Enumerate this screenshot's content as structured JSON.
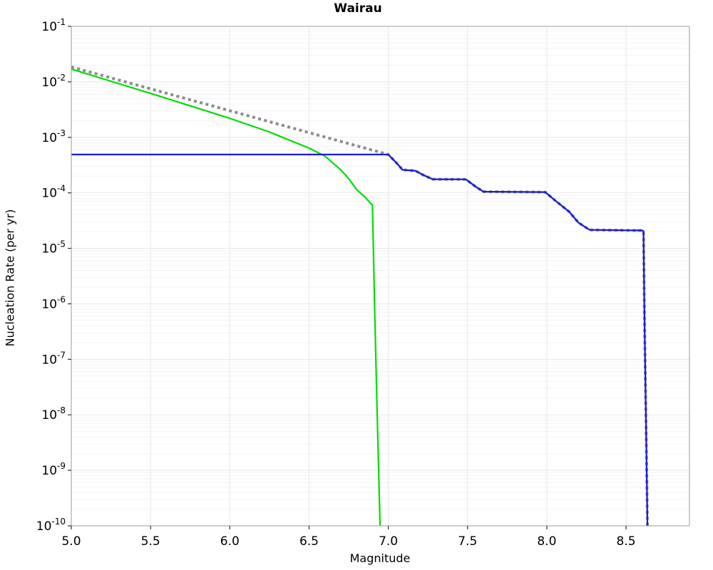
{
  "figure": {
    "title": "Wairau",
    "xlabel": "Magnitude",
    "ylabel": "Nucleation Rate (per yr)"
  },
  "chart_data": {
    "type": "line",
    "title": "Wairau",
    "xlabel": "Magnitude",
    "ylabel": "Nucleation Rate (per yr)",
    "x_range": [
      5.0,
      8.9
    ],
    "y_scale": "log",
    "y_range": [
      1e-10,
      0.1
    ],
    "x_ticks": [
      5.0,
      5.5,
      6.0,
      6.5,
      7.0,
      7.5,
      8.0,
      8.5
    ],
    "x_tick_labels": [
      "5.0",
      "5.5",
      "6.0",
      "6.5",
      "7.0",
      "7.5",
      "8.0",
      "8.5"
    ],
    "y_tick_exponents": [
      -1,
      -2,
      -3,
      -4,
      -5,
      -6,
      -7,
      -8,
      -9,
      -10
    ],
    "grid": true,
    "legend_position": "none",
    "colors": {
      "background": "#ffffff",
      "spine": "#9b9b9b",
      "grid_major": "#e7e7e7",
      "grid_minor": "#f3f3f3",
      "tick": "#333333"
    },
    "series": [
      {
        "name": "gutenberg-richter-dotted",
        "color": "#8c8c8c",
        "style": "dotted",
        "line_width": 4,
        "points": [
          [
            5.0,
            0.0186
          ],
          [
            7.0,
            0.00049
          ],
          [
            7.05,
            0.00035
          ],
          [
            7.09,
            0.00026
          ],
          [
            7.17,
            0.00025
          ],
          [
            7.22,
            0.00021
          ],
          [
            7.28,
            0.000176
          ],
          [
            7.49,
            0.000175
          ],
          [
            7.55,
            0.00013
          ],
          [
            7.6,
            0.000105
          ],
          [
            7.99,
            0.000103
          ],
          [
            8.06,
            7e-05
          ],
          [
            8.14,
            4.6e-05
          ],
          [
            8.2,
            2.9e-05
          ],
          [
            8.27,
            2.15e-05
          ],
          [
            8.6,
            2.1e-05
          ],
          [
            8.61,
            2.05e-05
          ],
          [
            8.615,
            1e-06
          ],
          [
            8.625,
            1e-08
          ],
          [
            8.635,
            1e-10
          ]
        ]
      },
      {
        "name": "tapered-rate-green",
        "color": "#00dd00",
        "style": "solid",
        "line_width": 2.2,
        "points": [
          [
            5.0,
            0.017
          ],
          [
            5.5,
            0.0062
          ],
          [
            6.0,
            0.0022
          ],
          [
            6.25,
            0.00125
          ],
          [
            6.5,
            0.00064
          ],
          [
            6.6,
            0.00046
          ],
          [
            6.7,
            0.00026
          ],
          [
            6.75,
            0.00018
          ],
          [
            6.8,
            0.000115
          ],
          [
            6.85,
            8.5e-05
          ],
          [
            6.9,
            6e-05
          ],
          [
            6.913,
            1e-06
          ],
          [
            6.93,
            1e-08
          ],
          [
            6.948,
            1e-10
          ]
        ]
      },
      {
        "name": "nucleation-rate-blue",
        "color": "#1a1ae0",
        "style": "solid",
        "line_width": 2.3,
        "points": [
          [
            5.0,
            0.00049
          ],
          [
            7.0,
            0.00049
          ],
          [
            7.05,
            0.00035
          ],
          [
            7.09,
            0.00026
          ],
          [
            7.17,
            0.00025
          ],
          [
            7.22,
            0.00021
          ],
          [
            7.28,
            0.000176
          ],
          [
            7.49,
            0.000175
          ],
          [
            7.55,
            0.00013
          ],
          [
            7.6,
            0.000105
          ],
          [
            7.99,
            0.000103
          ],
          [
            8.06,
            7e-05
          ],
          [
            8.14,
            4.6e-05
          ],
          [
            8.2,
            2.9e-05
          ],
          [
            8.27,
            2.15e-05
          ],
          [
            8.6,
            2.1e-05
          ],
          [
            8.61,
            2.05e-05
          ],
          [
            8.615,
            1e-06
          ],
          [
            8.625,
            1e-08
          ],
          [
            8.635,
            1e-10
          ]
        ]
      }
    ]
  }
}
